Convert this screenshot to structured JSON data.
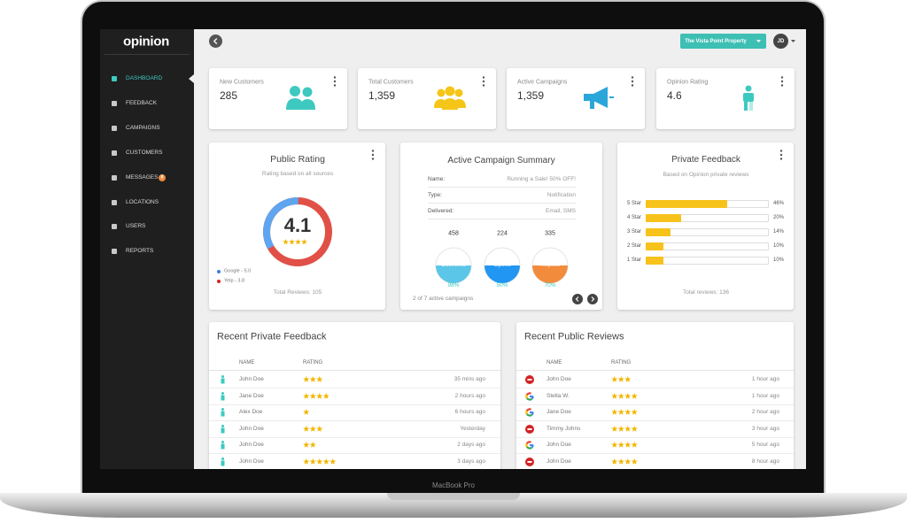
{
  "device": "MacBook Pro",
  "sidebar": {
    "logo": "opinion",
    "nav": [
      "DASHBOARD",
      "FEEDBACK",
      "CAMPAIGNS",
      "CUSTOMERS",
      "MESSAGES",
      "LOCATIONS",
      "USERS",
      "REPORTS"
    ],
    "badge": "8"
  },
  "header": {
    "property": "The Vista Point Property",
    "avatar": "JD"
  },
  "stats": [
    {
      "label": "New Customers",
      "value": "285"
    },
    {
      "label": "Total Customers",
      "value": "1,359"
    },
    {
      "label": "Active Campaigns",
      "value": "1,359"
    },
    {
      "label": "Opinion Rating",
      "value": "4.6"
    }
  ],
  "public_rating": {
    "title": "Public Rating",
    "subtitle": "Rating based on all sources",
    "rating": 4.1,
    "sources": [
      "Google - 5.0",
      "Yelp - 3.8"
    ],
    "footer": "Total Reviews: 105"
  },
  "campaign_summary": {
    "title": "Active Campaign Summary",
    "fields": [
      [
        "Name:",
        "Running a Sale! 50% OFF!"
      ],
      [
        "Type:",
        "Notification"
      ],
      [
        "Delivered:",
        "Email, SMS"
      ]
    ],
    "metrics": [
      {
        "count": "458",
        "label": "Delivered",
        "percent": "98%"
      },
      {
        "count": "224",
        "label": "Opens",
        "percent": "50%"
      },
      {
        "count": "335",
        "label": "Replies",
        "percent": "70%"
      }
    ],
    "footer": "2 of 7 active campaigns"
  },
  "private_feedback": {
    "title": "Private Feedback",
    "subtitle": "Based on Opinion private reviews",
    "categories": [
      "5 Star",
      "4 Star",
      "3 Star",
      "2 Star",
      "1 Star"
    ],
    "values": [
      46,
      20,
      14,
      10,
      10
    ],
    "value_labels": [
      "46%",
      "20%",
      "14%",
      "10%",
      "10%"
    ],
    "footer": "Total reviews: 136"
  },
  "recent_private": {
    "title": "Recent Private Feedback",
    "columns": [
      "NAME",
      "RATING"
    ],
    "rows": [
      {
        "name": "John Doe",
        "rating": 3,
        "time": "35 mins ago"
      },
      {
        "name": "Jane Doe",
        "rating": 4,
        "time": "2 hours ago"
      },
      {
        "name": "Alex Doe",
        "rating": 1,
        "time": "6 hours ago"
      },
      {
        "name": "John Doe",
        "rating": 3,
        "time": "Yesterday"
      },
      {
        "name": "John Doe",
        "rating": 2,
        "time": "2 days ago"
      },
      {
        "name": "John Doe",
        "rating": 5,
        "time": "3 days ago"
      }
    ]
  },
  "recent_public": {
    "title": "Recent Public Reviews",
    "columns": [
      "NAME",
      "RATING"
    ],
    "rows": [
      {
        "name": "John Doe",
        "rating": 3,
        "time": "1 hour ago"
      },
      {
        "name": "Stella W.",
        "rating": 4,
        "time": "1 hour ago"
      },
      {
        "name": "Jane Doe",
        "rating": 4,
        "time": "2 hour ago"
      },
      {
        "name": "Timmy Johns",
        "rating": 4,
        "time": "3 hour ago"
      },
      {
        "name": "John Doe",
        "rating": 4,
        "time": "5 hour ago"
      },
      {
        "name": "John Doe",
        "rating": 4,
        "time": "8 hour ago"
      }
    ]
  }
}
